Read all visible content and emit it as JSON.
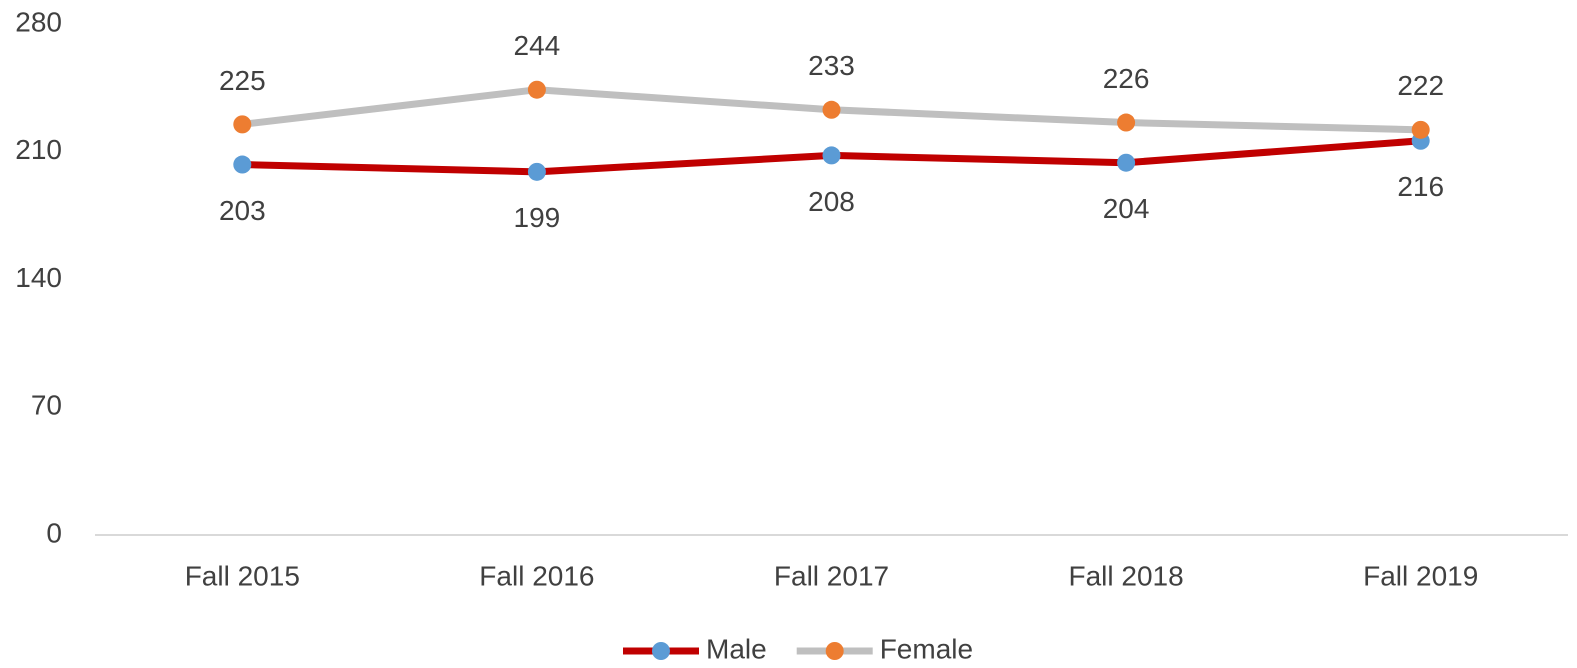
{
  "chart_data": {
    "type": "line",
    "categories": [
      "Fall 2015",
      "Fall 2016",
      "Fall 2017",
      "Fall 2018",
      "Fall 2019"
    ],
    "series": [
      {
        "name": "Male",
        "color": "#c00000",
        "marker_color": "#5b9bd5",
        "values": [
          203,
          199,
          208,
          204,
          216
        ]
      },
      {
        "name": "Female",
        "color": "#bfbfbf",
        "marker_color": "#ed7d31",
        "values": [
          225,
          244,
          233,
          226,
          222
        ]
      }
    ],
    "ylim": [
      0,
      280
    ],
    "yticks": [
      0,
      70,
      140,
      210,
      280
    ],
    "grid": false,
    "legend": "bottom"
  }
}
